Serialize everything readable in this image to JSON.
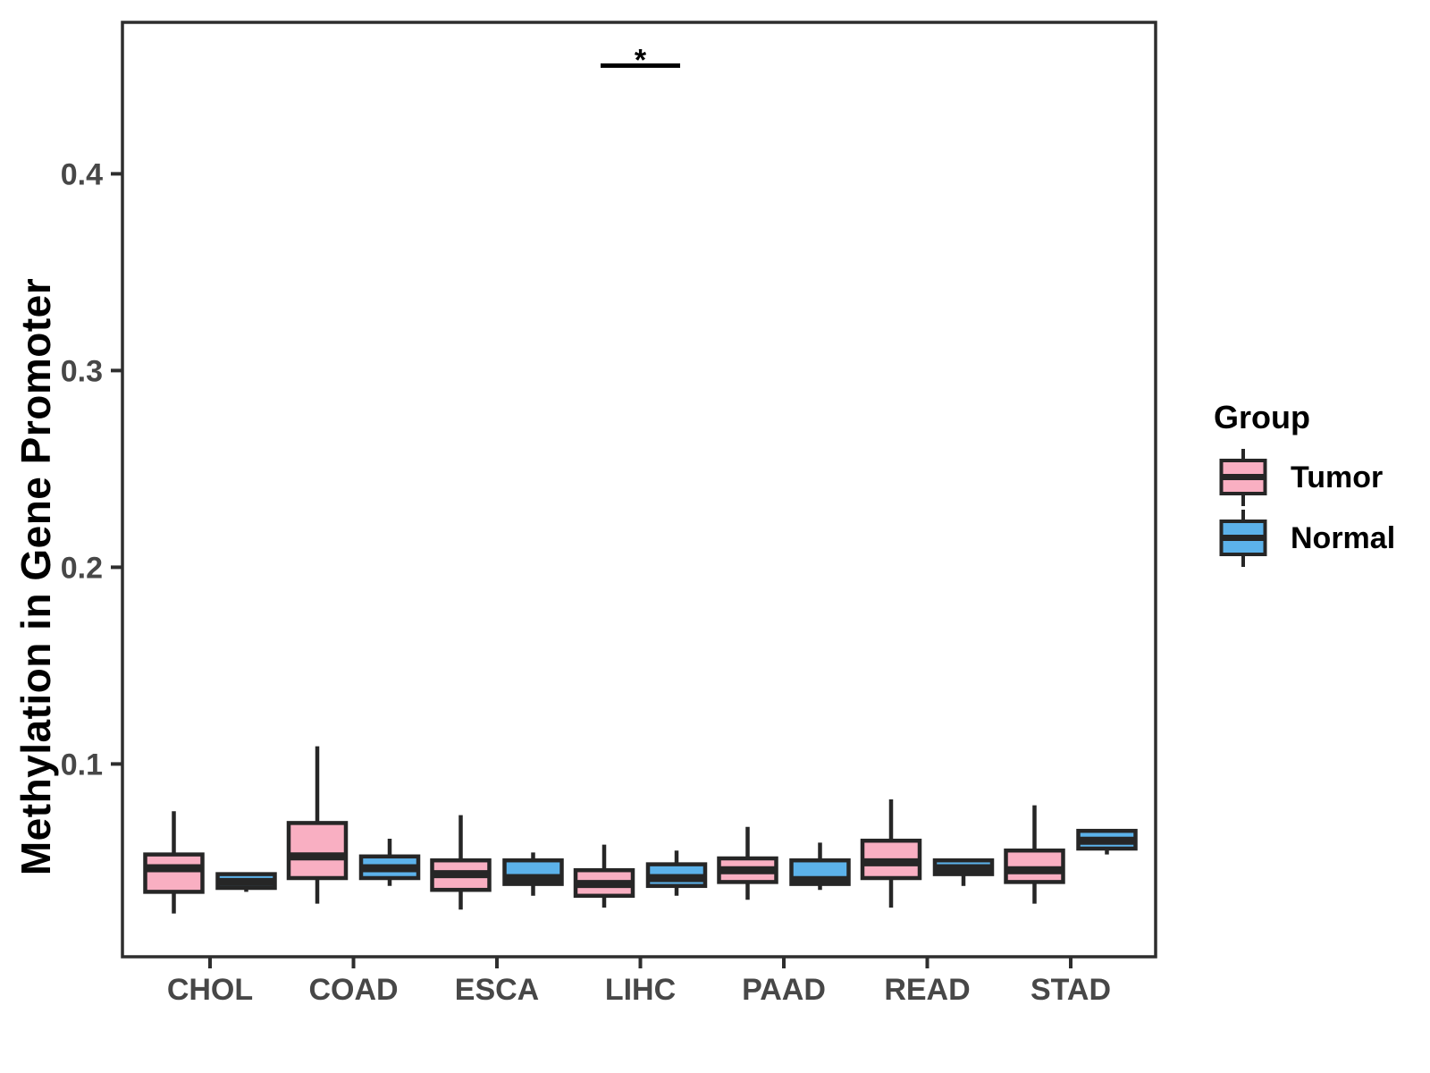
{
  "chart_data": {
    "type": "box",
    "title": "",
    "xlabel": "",
    "ylabel": "Methylation in Gene Promoter",
    "categories": [
      "CHOL",
      "COAD",
      "ESCA",
      "LIHC",
      "PAAD",
      "READ",
      "STAD"
    ],
    "yticks": [
      0.1,
      0.2,
      0.3,
      0.4
    ],
    "ylim": [
      0.002,
      0.477
    ],
    "grid": "off",
    "box_values_order": [
      "whisker_low",
      "q1",
      "median",
      "q3",
      "whisker_high"
    ],
    "series": [
      {
        "name": "Tumor",
        "color": "#F9AFC2",
        "data": [
          [
            0.024,
            0.035,
            0.047,
            0.054,
            0.076
          ],
          [
            0.029,
            0.042,
            0.053,
            0.07,
            0.109
          ],
          [
            0.026,
            0.036,
            0.044,
            0.051,
            0.074
          ],
          [
            0.027,
            0.033,
            0.039,
            0.046,
            0.059
          ],
          [
            0.031,
            0.04,
            0.046,
            0.052,
            0.068
          ],
          [
            0.027,
            0.042,
            0.05,
            0.061,
            0.082
          ],
          [
            0.029,
            0.04,
            0.046,
            0.056,
            0.079
          ]
        ]
      },
      {
        "name": "Normal",
        "color": "#5CB2EA",
        "data": [
          [
            0.035,
            0.037,
            0.04,
            0.044,
            0.044
          ],
          [
            0.038,
            0.042,
            0.047,
            0.053,
            0.062
          ],
          [
            0.033,
            0.039,
            0.042,
            0.051,
            0.055
          ],
          [
            0.033,
            0.038,
            0.042,
            0.049,
            0.056
          ],
          [
            0.036,
            0.039,
            0.041,
            0.051,
            0.06
          ],
          [
            0.038,
            0.044,
            0.047,
            0.051,
            0.051
          ],
          [
            0.054,
            0.057,
            0.061,
            0.066,
            0.067
          ]
        ]
      }
    ],
    "legend": {
      "title": "Group",
      "position": "right",
      "entries": [
        "Tumor",
        "Normal"
      ]
    },
    "annotations": [
      {
        "label": "*",
        "category": "LIHC",
        "bar_y": 0.455
      }
    ],
    "colors": {
      "box_stroke": "#262626",
      "panel_border": "#2E2E2E",
      "tick_label": "#474747",
      "annotation": "#000000",
      "background": "#FFFFFF"
    }
  }
}
